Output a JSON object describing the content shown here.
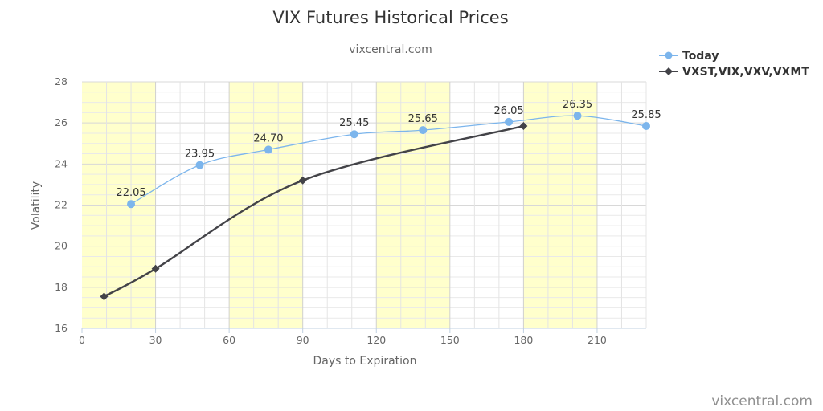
{
  "chart_data": {
    "type": "line",
    "title": "VIX Futures Historical Prices",
    "subtitle": "vixcentral.com",
    "xlabel": "Days to Expiration",
    "ylabel": "Volatility",
    "xlim": [
      0,
      230
    ],
    "ylim": [
      16,
      28
    ],
    "xticks": [
      0,
      30,
      60,
      90,
      120,
      150,
      180,
      210
    ],
    "yticks": [
      16,
      18,
      20,
      22,
      24,
      26,
      28
    ],
    "grid": true,
    "shaded_bands": [
      [
        0,
        30
      ],
      [
        60,
        90
      ],
      [
        120,
        150
      ],
      [
        180,
        210
      ]
    ],
    "legend_position": "top-right",
    "series": [
      {
        "name": "Today",
        "color": "#7cb5ec",
        "marker": "circle",
        "x": [
          20,
          48,
          76,
          111,
          139,
          174,
          202,
          230
        ],
        "y": [
          22.05,
          23.95,
          24.7,
          25.45,
          25.65,
          26.05,
          26.35,
          25.85
        ],
        "labels": [
          "22.05",
          "23.95",
          "24.70",
          "25.45",
          "25.65",
          "26.05",
          "26.35",
          "25.85"
        ]
      },
      {
        "name": "VXST,VIX,VXV,VXMT",
        "color": "#434348",
        "marker": "diamond",
        "x": [
          9,
          30,
          90,
          180
        ],
        "y": [
          17.55,
          18.9,
          23.2,
          25.85
        ]
      }
    ]
  },
  "credits": "vixcentral.com"
}
